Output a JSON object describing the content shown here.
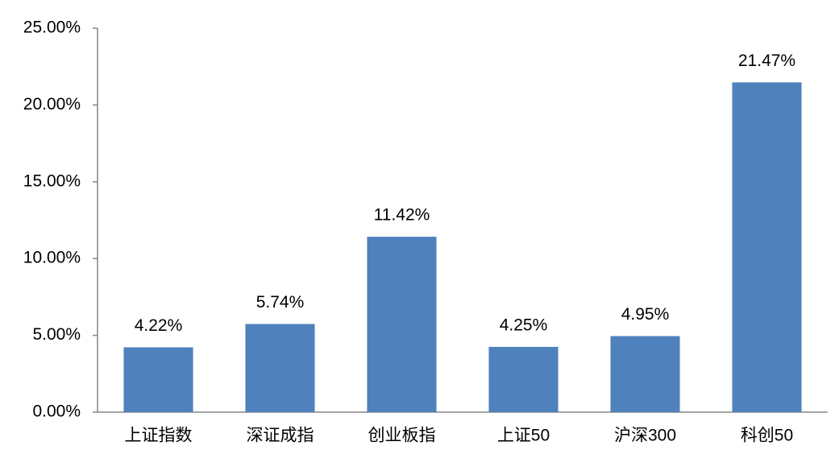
{
  "chart_data": {
    "type": "bar",
    "categories": [
      "上证指数",
      "深证成指",
      "创业板指",
      "上证50",
      "沪深300",
      "科创50"
    ],
    "values": [
      4.22,
      5.74,
      11.42,
      4.25,
      4.95,
      21.47
    ],
    "value_labels": [
      "4.22%",
      "5.74%",
      "11.42%",
      "4.25%",
      "4.95%",
      "21.47%"
    ],
    "color": "#4f81bd",
    "ylim": [
      0,
      25
    ],
    "yticks": [
      {
        "value": 0,
        "label": "0.00%"
      },
      {
        "value": 5,
        "label": "5.00%"
      },
      {
        "value": 10,
        "label": "10.00%"
      },
      {
        "value": 15,
        "label": "15.00%"
      },
      {
        "value": 20,
        "label": "20.00%"
      },
      {
        "value": 25,
        "label": "25.00%"
      }
    ],
    "grid": false
  }
}
